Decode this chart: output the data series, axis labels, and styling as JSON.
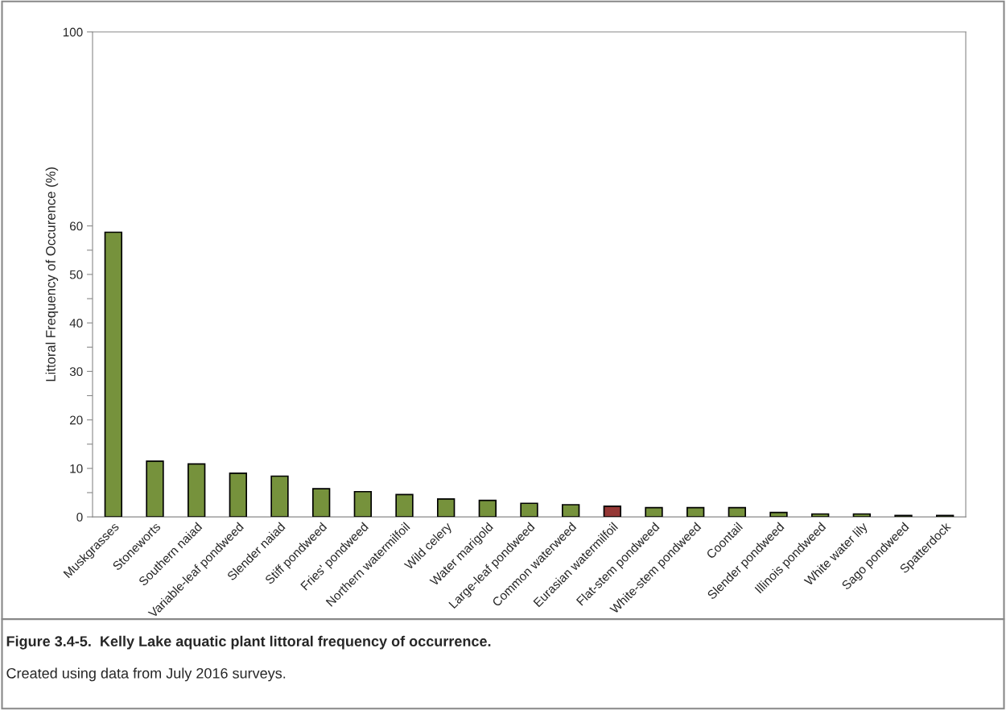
{
  "chart_data": {
    "type": "bar",
    "title": "Figure 3.4-5.  Kelly Lake aquatic plant littoral frequency of occurrence.",
    "ylabel": "Littoral Frequency of Occurence (%)",
    "categories": [
      "Muskgrasses",
      "Stoneworts",
      "Southern naiad",
      "Variable-leaf pondweed",
      "Slender naiad",
      "Stiff pondweed",
      "Fries' pondweed",
      "Northern watermilfoil",
      "Wild celery",
      "Water marigold",
      "Large-leaf pondweed",
      "Common waterweed",
      "Eurasian watermilfoil",
      "Flat-stem pondweed",
      "White-stem pondweed",
      "Coontail",
      "Slender pondweed",
      "Illinois pondweed",
      "White water lily",
      "Sago pondweed",
      "Spatterdock"
    ],
    "values": [
      58.7,
      11.5,
      10.9,
      9.0,
      8.4,
      5.8,
      5.2,
      4.6,
      3.7,
      3.4,
      2.8,
      2.5,
      2.2,
      1.9,
      1.9,
      1.9,
      0.9,
      0.6,
      0.6,
      0.3,
      0.3
    ],
    "colors": [
      "#76923c",
      "#76923c",
      "#76923c",
      "#76923c",
      "#76923c",
      "#76923c",
      "#76923c",
      "#76923c",
      "#76923c",
      "#76923c",
      "#76923c",
      "#76923c",
      "#953735",
      "#76923c",
      "#76923c",
      "#76923c",
      "#76923c",
      "#76923c",
      "#76923c",
      "#76923c",
      "#76923c"
    ],
    "ylim": [
      0,
      100
    ],
    "yticks": [
      0,
      {
        "value": 5,
        "label": null
      },
      10,
      {
        "value": 15,
        "label": null
      },
      20,
      {
        "value": 25,
        "label": null
      },
      30,
      {
        "value": 35,
        "label": null
      },
      40,
      {
        "value": 45,
        "label": null
      },
      50,
      {
        "value": 55,
        "label": null
      },
      60,
      100
    ],
    "grid": false,
    "annotations": [
      "Created using data from July 2016 surveys."
    ]
  }
}
